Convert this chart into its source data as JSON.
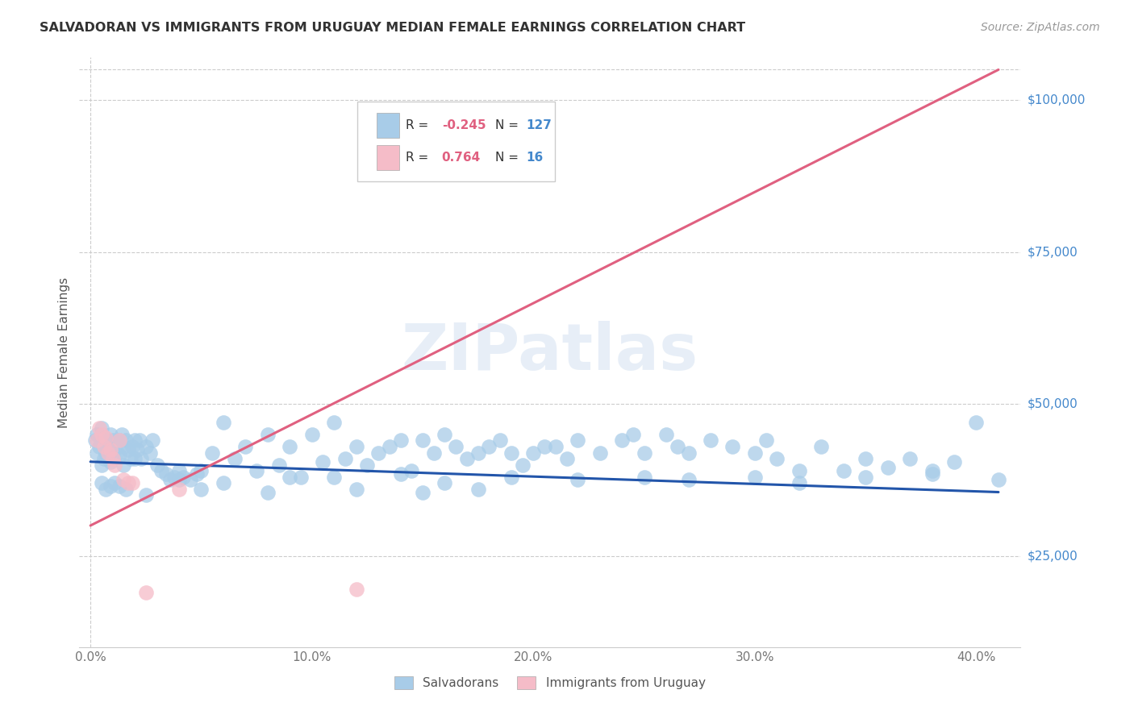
{
  "title": "SALVADORAN VS IMMIGRANTS FROM URUGUAY MEDIAN FEMALE EARNINGS CORRELATION CHART",
  "source": "Source: ZipAtlas.com",
  "xlabel_ticks": [
    "0.0%",
    "10.0%",
    "20.0%",
    "30.0%",
    "40.0%"
  ],
  "xlabel_tick_vals": [
    0.0,
    0.1,
    0.2,
    0.3,
    0.4
  ],
  "ylabel": "Median Female Earnings",
  "ylabel_ticks": [
    "$25,000",
    "$50,000",
    "$75,000",
    "$100,000"
  ],
  "ylabel_tick_vals": [
    25000,
    50000,
    75000,
    100000
  ],
  "ylim": [
    10000,
    107000
  ],
  "xlim": [
    -0.005,
    0.42
  ],
  "blue_R": -0.245,
  "blue_N": 127,
  "pink_R": 0.764,
  "pink_N": 16,
  "blue_color": "#a8cce8",
  "pink_color": "#f5bcc8",
  "blue_line_color": "#2255aa",
  "pink_line_color": "#e06080",
  "title_color": "#333333",
  "axis_label_color": "#4488cc",
  "watermark_color": "#d0dff0",
  "watermark": "ZIPatlas",
  "blue_line_x0": 0.0,
  "blue_line_x1": 0.41,
  "blue_line_y0": 40500,
  "blue_line_y1": 35500,
  "pink_line_x0": 0.0,
  "pink_line_x1": 0.41,
  "pink_line_y0": 30000,
  "pink_line_y1": 105000,
  "blue_scatter_x": [
    0.002,
    0.003,
    0.003,
    0.004,
    0.005,
    0.005,
    0.006,
    0.006,
    0.007,
    0.007,
    0.008,
    0.008,
    0.009,
    0.009,
    0.01,
    0.01,
    0.011,
    0.012,
    0.013,
    0.013,
    0.014,
    0.015,
    0.015,
    0.016,
    0.017,
    0.018,
    0.019,
    0.02,
    0.02,
    0.021,
    0.022,
    0.023,
    0.025,
    0.027,
    0.028,
    0.03,
    0.032,
    0.034,
    0.036,
    0.038,
    0.04,
    0.042,
    0.045,
    0.048,
    0.05,
    0.055,
    0.06,
    0.065,
    0.07,
    0.075,
    0.08,
    0.085,
    0.09,
    0.095,
    0.1,
    0.105,
    0.11,
    0.115,
    0.12,
    0.125,
    0.13,
    0.135,
    0.14,
    0.145,
    0.15,
    0.155,
    0.16,
    0.165,
    0.17,
    0.175,
    0.18,
    0.185,
    0.19,
    0.195,
    0.2,
    0.205,
    0.21,
    0.215,
    0.22,
    0.23,
    0.24,
    0.245,
    0.25,
    0.26,
    0.265,
    0.27,
    0.28,
    0.29,
    0.3,
    0.305,
    0.31,
    0.32,
    0.33,
    0.34,
    0.35,
    0.36,
    0.37,
    0.38,
    0.39,
    0.4,
    0.005,
    0.007,
    0.009,
    0.011,
    0.013,
    0.016,
    0.04,
    0.06,
    0.09,
    0.11,
    0.14,
    0.16,
    0.19,
    0.22,
    0.25,
    0.27,
    0.3,
    0.32,
    0.35,
    0.38,
    0.41,
    0.025,
    0.05,
    0.08,
    0.12,
    0.15,
    0.175
  ],
  "blue_scatter_y": [
    44000,
    42000,
    45000,
    43000,
    46000,
    40000,
    44500,
    41000,
    42000,
    44000,
    43000,
    41000,
    45000,
    40500,
    44000,
    42000,
    43500,
    42000,
    44000,
    41500,
    45000,
    43000,
    40000,
    44000,
    42500,
    41000,
    43000,
    44000,
    41000,
    42500,
    44000,
    41000,
    43000,
    42000,
    44000,
    40000,
    39000,
    38500,
    37500,
    38000,
    39000,
    38000,
    37500,
    38500,
    39000,
    42000,
    47000,
    41000,
    43000,
    39000,
    45000,
    40000,
    43000,
    38000,
    45000,
    40500,
    47000,
    41000,
    43000,
    40000,
    42000,
    43000,
    44000,
    39000,
    44000,
    42000,
    45000,
    43000,
    41000,
    42000,
    43000,
    44000,
    42000,
    40000,
    42000,
    43000,
    43000,
    41000,
    44000,
    42000,
    44000,
    45000,
    42000,
    45000,
    43000,
    42000,
    44000,
    43000,
    42000,
    44000,
    41000,
    39000,
    43000,
    39000,
    41000,
    39500,
    41000,
    39000,
    40500,
    47000,
    37000,
    36000,
    36500,
    37000,
    36500,
    36000,
    37500,
    37000,
    38000,
    38000,
    38500,
    37000,
    38000,
    37500,
    38000,
    37500,
    38000,
    37000,
    38000,
    38500,
    37500,
    35000,
    36000,
    35500,
    36000,
    35500,
    36000
  ],
  "pink_scatter_x": [
    0.003,
    0.004,
    0.005,
    0.006,
    0.007,
    0.008,
    0.009,
    0.01,
    0.011,
    0.013,
    0.015,
    0.017,
    0.019,
    0.025,
    0.04,
    0.12
  ],
  "pink_scatter_y": [
    44000,
    46000,
    45000,
    43000,
    44500,
    42000,
    42500,
    41000,
    40000,
    44000,
    37500,
    37000,
    37000,
    19000,
    36000,
    19500
  ]
}
